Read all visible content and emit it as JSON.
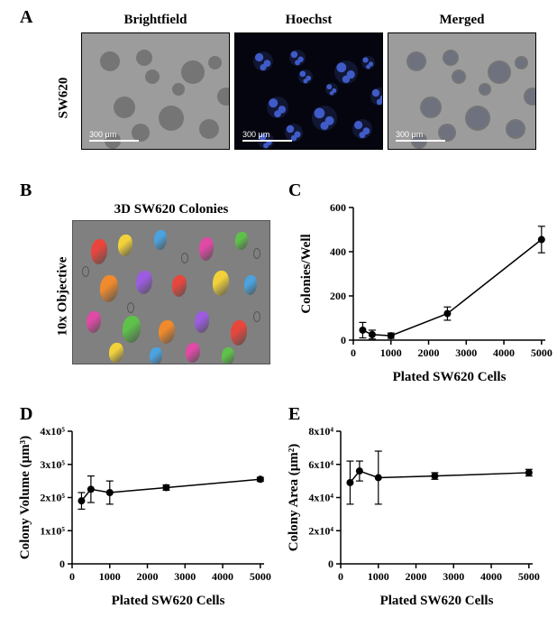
{
  "figure": {
    "panel_letters": {
      "A": "A",
      "B": "B",
      "C": "C",
      "D": "D",
      "E": "E"
    },
    "panelA": {
      "row_label": "SW620",
      "cols": [
        "Brightfield",
        "Hoechst",
        "Merged"
      ],
      "scale_text": "300 μm",
      "bg_colors": {
        "brightfield": "#9c9c9c",
        "hoechst": "#050510",
        "merged": "#9c9c9c"
      },
      "cell_color_bf": "#6e6e6e",
      "cell_color_hoechst": "#4a6be8",
      "cell_color_merged_fg": "#5a7cf0"
    },
    "panelB": {
      "title": "3D SW620 Colonies",
      "side_label": "10x Objective",
      "bg": "#808080",
      "blob_colors": [
        "#e8463c",
        "#f2d23a",
        "#4aa3e0",
        "#e04aa6",
        "#5ec24a",
        "#f08a2c",
        "#9c5ce0"
      ]
    },
    "panelC": {
      "type": "line",
      "xlabel": "Plated SW620 Cells",
      "ylabel": "Colonies/Well",
      "x": [
        250,
        500,
        1000,
        2500,
        5000
      ],
      "y": [
        45,
        25,
        20,
        120,
        455
      ],
      "yerr": [
        35,
        20,
        12,
        30,
        60
      ],
      "xlim": [
        0,
        5100
      ],
      "ylim": [
        0,
        600
      ],
      "xticks": [
        0,
        1000,
        2000,
        3000,
        4000,
        5000
      ],
      "yticks": [
        0,
        200,
        400,
        600
      ],
      "colors": {
        "line": "#000000",
        "marker": "#000000",
        "axis": "#000000",
        "text": "#000000",
        "bg": "#ffffff"
      },
      "marker_size": 4,
      "line_width": 1.5,
      "label_fontsize": 15,
      "tick_fontsize": 12
    },
    "panelD": {
      "type": "line",
      "xlabel": "Plated SW620 Cells",
      "ylabel": "Colony Volume (μm³)",
      "x": [
        250,
        500,
        1000,
        2500,
        5000
      ],
      "y": [
        190000,
        225000,
        215000,
        230000,
        255000
      ],
      "yerr": [
        25000,
        40000,
        35000,
        8000,
        6000
      ],
      "xlim": [
        0,
        5100
      ],
      "ylim": [
        0,
        400000
      ],
      "xticks": [
        0,
        1000,
        2000,
        3000,
        4000,
        5000
      ],
      "yticks": [
        0,
        100000,
        200000,
        300000,
        400000
      ],
      "ytick_labels": [
        "0",
        "1x10⁵",
        "2x10⁵",
        "3x10⁵",
        "4x10⁵"
      ],
      "colors": {
        "line": "#000000",
        "marker": "#000000",
        "axis": "#000000",
        "text": "#000000",
        "bg": "#ffffff"
      },
      "marker_size": 4,
      "line_width": 1.5,
      "label_fontsize": 15,
      "tick_fontsize": 12
    },
    "panelE": {
      "type": "line",
      "xlabel": "Plated SW620 Cells",
      "ylabel": "Colony Area (μm²)",
      "x": [
        250,
        500,
        1000,
        2500,
        5000
      ],
      "y": [
        49000,
        56000,
        52000,
        53000,
        55000
      ],
      "yerr": [
        13000,
        6000,
        16000,
        2000,
        2000
      ],
      "xlim": [
        0,
        5100
      ],
      "ylim": [
        0,
        80000
      ],
      "xticks": [
        0,
        1000,
        2000,
        3000,
        4000,
        5000
      ],
      "yticks": [
        0,
        20000,
        40000,
        60000,
        80000
      ],
      "ytick_labels": [
        "0",
        "2x10⁴",
        "4x10⁴",
        "6x10⁴",
        "8x10⁴"
      ],
      "colors": {
        "line": "#000000",
        "marker": "#000000",
        "axis": "#000000",
        "text": "#000000",
        "bg": "#ffffff"
      },
      "marker_size": 4,
      "line_width": 1.5,
      "label_fontsize": 15,
      "tick_fontsize": 12
    }
  }
}
